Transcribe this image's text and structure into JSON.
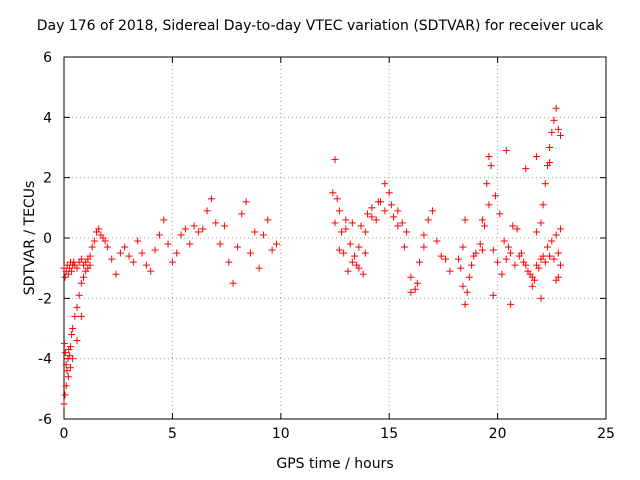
{
  "chart_data": {
    "type": "scatter",
    "title": "Day 176 of 2018, Sidereal Day-to-day VTEC variation (SDTVAR) for receiver ucak",
    "xlabel": "GPS time / hours",
    "ylabel": "SDTVAR / TECUs",
    "xlim": [
      0,
      25
    ],
    "ylim": [
      -6,
      6
    ],
    "xticks": [
      0,
      5,
      10,
      15,
      20,
      25
    ],
    "yticks": [
      -6,
      -4,
      -2,
      0,
      2,
      4,
      6
    ],
    "grid": true,
    "marker": "+",
    "color": "#ff0000",
    "series": [
      {
        "name": "SDTVAR",
        "x": [
          0.0,
          0.05,
          0.1,
          0.15,
          0.2,
          0.25,
          0.3,
          0.35,
          0.4,
          0.45,
          0.5,
          0.6,
          0.7,
          0.8,
          0.9,
          1.0,
          1.1,
          1.2,
          1.3,
          1.4,
          1.5,
          1.6,
          1.7,
          1.8,
          1.9,
          2.0,
          2.2,
          2.4,
          2.6,
          2.8,
          3.0,
          3.2,
          3.4,
          3.6,
          3.8,
          4.0,
          4.2,
          4.4,
          4.6,
          4.8,
          5.0,
          5.2,
          5.4,
          5.6,
          5.8,
          6.0,
          6.2,
          6.4,
          6.6,
          6.8,
          7.0,
          7.2,
          7.4,
          7.6,
          7.8,
          8.0,
          8.2,
          8.4,
          8.6,
          8.8,
          9.0,
          9.2,
          9.4,
          9.6,
          9.8,
          0.02,
          0.06,
          0.1,
          0.14,
          0.18,
          0.22,
          0.26,
          0.3,
          0.35,
          0.4,
          0.5,
          0.6,
          0.7,
          0.8,
          0.9,
          1.0,
          1.1,
          1.2,
          0.0,
          0.05,
          0.1,
          0.2,
          0.3,
          0.4,
          0.6,
          0.8,
          12.4,
          12.5,
          12.6,
          12.7,
          12.8,
          12.9,
          13.0,
          13.1,
          13.2,
          13.3,
          13.4,
          13.5,
          13.6,
          13.7,
          13.8,
          13.9,
          14.0,
          14.2,
          14.4,
          14.6,
          14.8,
          15.0,
          15.2,
          15.4,
          15.6,
          15.8,
          16.0,
          16.2,
          16.4,
          16.6,
          16.8,
          17.0,
          17.2,
          17.4,
          17.6,
          17.8,
          12.5,
          12.7,
          13.0,
          13.3,
          13.6,
          13.9,
          14.2,
          14.5,
          14.8,
          15.1,
          15.4,
          15.7,
          16.0,
          16.3,
          16.6,
          18.2,
          18.3,
          18.4,
          18.5,
          18.6,
          18.7,
          18.8,
          18.9,
          19.0,
          19.2,
          19.4,
          19.6,
          19.8,
          20.0,
          20.2,
          20.4,
          20.6,
          20.8,
          21.0,
          21.2,
          21.4,
          21.6,
          21.8,
          22.0,
          22.2,
          22.4,
          22.6,
          22.8,
          22.9,
          19.3,
          19.5,
          19.7,
          19.9,
          20.1,
          20.3,
          20.5,
          20.7,
          20.9,
          21.1,
          21.3,
          21.5,
          21.7,
          21.9,
          22.1,
          22.3,
          22.5,
          22.7,
          22.9,
          21.8,
          22.0,
          22.1,
          22.2,
          22.3,
          22.4,
          22.5,
          22.6,
          22.7,
          22.8,
          22.9,
          18.4,
          18.5,
          19.3,
          19.6,
          19.8,
          20.4,
          20.6,
          21.3,
          21.6,
          21.8,
          22.0,
          22.4,
          22.7,
          22.8
        ],
        "y": [
          -1.0,
          -1.3,
          -1.1,
          -0.9,
          -1.2,
          -1.0,
          -0.8,
          -1.1,
          -0.9,
          -0.8,
          -0.9,
          -1.0,
          -0.8,
          -0.7,
          -0.9,
          -0.8,
          -0.7,
          -0.6,
          -0.3,
          -0.1,
          0.2,
          0.3,
          0.1,
          0.0,
          -0.1,
          -0.3,
          -0.7,
          -1.2,
          -0.5,
          -0.3,
          -0.6,
          -0.8,
          -0.1,
          -0.5,
          -0.9,
          -1.1,
          -0.4,
          0.1,
          0.6,
          -0.2,
          -0.8,
          -0.5,
          0.1,
          0.3,
          -0.2,
          0.4,
          0.2,
          0.3,
          0.9,
          1.3,
          0.5,
          -0.2,
          0.4,
          -0.8,
          -1.5,
          -0.3,
          0.8,
          1.2,
          -0.5,
          0.2,
          -1.0,
          0.1,
          0.6,
          -0.4,
          -0.2,
          -3.5,
          -3.8,
          -4.2,
          -4.4,
          -4.0,
          -3.7,
          -3.9,
          -3.6,
          -3.2,
          -3.0,
          -2.6,
          -2.3,
          -1.9,
          -1.5,
          -1.3,
          -1.1,
          -1.0,
          -0.9,
          -5.5,
          -5.2,
          -4.9,
          -4.6,
          -4.3,
          -4.0,
          -3.4,
          -2.6,
          1.5,
          2.6,
          1.3,
          0.9,
          0.2,
          -0.5,
          0.6,
          -1.1,
          -0.2,
          0.5,
          -0.6,
          -0.9,
          -0.3,
          0.4,
          -1.2,
          -0.5,
          0.8,
          1.0,
          0.6,
          1.2,
          0.9,
          1.5,
          0.7,
          0.9,
          0.5,
          0.2,
          -1.3,
          -1.7,
          -0.8,
          -0.3,
          0.6,
          0.9,
          -0.1,
          -0.6,
          -0.7,
          -1.1,
          0.5,
          -0.4,
          0.3,
          -0.8,
          -1.0,
          0.2,
          0.7,
          1.2,
          1.8,
          1.1,
          0.4,
          -0.3,
          -1.8,
          -1.5,
          0.1,
          -0.7,
          -1.0,
          -1.6,
          -2.2,
          -1.8,
          -1.3,
          -0.9,
          -0.6,
          -0.5,
          -0.2,
          0.4,
          1.1,
          -0.4,
          -0.8,
          -1.2,
          -0.7,
          -0.5,
          -0.9,
          -0.6,
          -0.8,
          -1.1,
          -1.3,
          -0.9,
          -0.7,
          -0.8,
          -0.6,
          -0.7,
          -0.5,
          -0.9,
          0.6,
          1.8,
          2.4,
          1.4,
          0.8,
          -0.1,
          -0.3,
          0.4,
          0.3,
          -0.5,
          -0.9,
          -1.2,
          -1.4,
          -1.0,
          -0.6,
          -0.3,
          -0.1,
          0.1,
          0.3,
          0.2,
          0.5,
          1.1,
          1.8,
          2.4,
          3.0,
          3.5,
          3.9,
          4.3,
          3.6,
          3.4,
          -0.3,
          0.6,
          -0.4,
          2.7,
          -1.9,
          2.9,
          -2.2,
          2.3,
          -1.6,
          2.7,
          -2.0,
          2.5,
          -1.4,
          -1.3
        ]
      }
    ]
  }
}
